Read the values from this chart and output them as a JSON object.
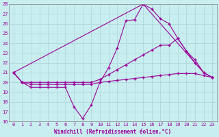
{
  "xlabel": "Windchill (Refroidissement éolien,°C)",
  "background_color": "#c8eef0",
  "line_color": "#990099",
  "grid_color": "#b0d8dc",
  "xlim": [
    -0.5,
    23.5
  ],
  "ylim": [
    16,
    28
  ],
  "yticks": [
    16,
    17,
    18,
    19,
    20,
    21,
    22,
    23,
    24,
    25,
    26,
    27,
    28
  ],
  "xticks": [
    0,
    1,
    2,
    3,
    4,
    5,
    6,
    7,
    8,
    9,
    10,
    11,
    12,
    13,
    14,
    15,
    16,
    17,
    18,
    19,
    20,
    21,
    22,
    23
  ],
  "series1_x": [
    0,
    1,
    2,
    3,
    4,
    5,
    6,
    7,
    8,
    9,
    10,
    11,
    12,
    13,
    14,
    15,
    16,
    17,
    18,
    19,
    20,
    21,
    22,
    23
  ],
  "series1_y": [
    21,
    20,
    19.5,
    19.5,
    19.5,
    19.5,
    19.5,
    17.5,
    16.3,
    17.7,
    20,
    21.5,
    23.5,
    26.3,
    26.4,
    28,
    27.5,
    26.5,
    26.0,
    24.5,
    23.2,
    22.3,
    21.0,
    20.5
  ],
  "series2_x": [
    0,
    15,
    22,
    23
  ],
  "series2_y": [
    21,
    28,
    21.0,
    20.5
  ],
  "series3_x": [
    0,
    1,
    2,
    3,
    4,
    5,
    6,
    7,
    8,
    9,
    10,
    11,
    12,
    13,
    14,
    15,
    16,
    17,
    18,
    19,
    20,
    21,
    22,
    23
  ],
  "series3_y": [
    21,
    20,
    20,
    20,
    20,
    20,
    20,
    20,
    20,
    20,
    20.3,
    20.8,
    21.3,
    21.8,
    22.3,
    22.8,
    23.3,
    23.8,
    23.8,
    24.5,
    23.2,
    22.0,
    21.0,
    20.5
  ],
  "series4_x": [
    0,
    1,
    2,
    3,
    4,
    5,
    6,
    7,
    8,
    9,
    10,
    11,
    12,
    13,
    14,
    15,
    16,
    17,
    18,
    19,
    20,
    21,
    22,
    23
  ],
  "series4_y": [
    21,
    20,
    19.8,
    19.8,
    19.8,
    19.8,
    19.8,
    19.8,
    19.8,
    19.8,
    20.0,
    20.1,
    20.2,
    20.3,
    20.4,
    20.5,
    20.6,
    20.7,
    20.8,
    20.9,
    20.9,
    20.9,
    20.7,
    20.5
  ]
}
